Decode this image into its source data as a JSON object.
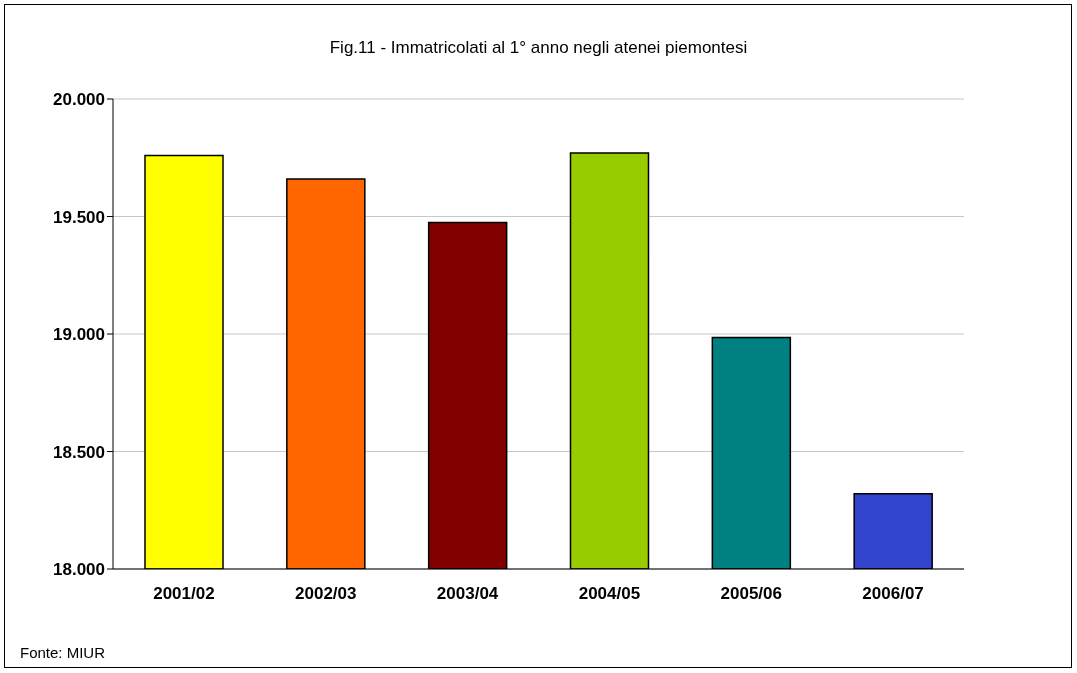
{
  "chart_data": {
    "type": "bar",
    "title": "Fig.11 - Immatricolati al 1° anno negli atenei piemontesi",
    "categories": [
      "2001/02",
      "2002/03",
      "2003/04",
      "2004/05",
      "2005/06",
      "2006/07"
    ],
    "values": [
      19760,
      19660,
      19475,
      19770,
      18985,
      18320
    ],
    "colors": [
      "#ffff00",
      "#ff6600",
      "#800000",
      "#99cc00",
      "#008080",
      "#3344cc"
    ],
    "ylim": [
      18000,
      20000
    ],
    "yticks": [
      {
        "value": 18000,
        "label": "18.000"
      },
      {
        "value": 18500,
        "label": "18.500"
      },
      {
        "value": 19000,
        "label": "19.000"
      },
      {
        "value": 19500,
        "label": "19.500"
      },
      {
        "value": 20000,
        "label": "20.000"
      }
    ],
    "grid": "y",
    "annotations": [
      "Fonte: MIUR"
    ]
  }
}
